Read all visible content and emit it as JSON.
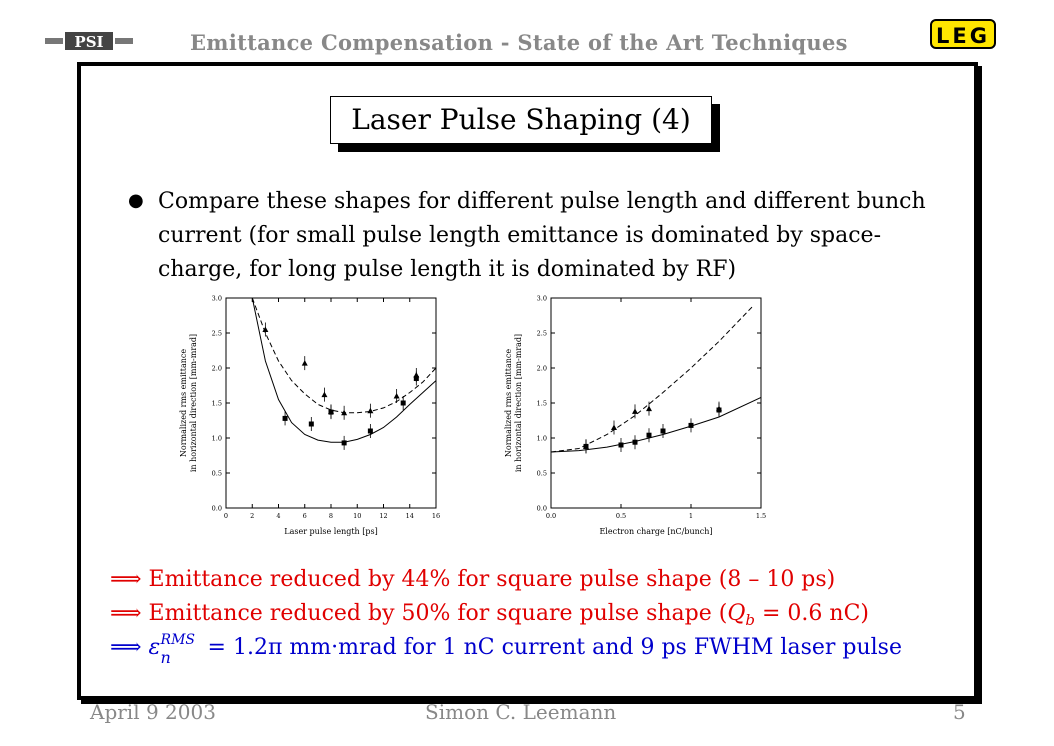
{
  "header": {
    "title": "Emittance Compensation - State of the Art Techniques",
    "logo_left": "PSI",
    "logo_right": "LEG"
  },
  "slide": {
    "title": "Laser Pulse Shaping (4)",
    "bullet": "Compare these shapes for different pulse length and different bunch current (for small pulse length emittance is dominated by space-charge, for long pulse length it is dominated by RF)",
    "line1": "Emittance reduced by 44% for square pulse shape (8 – 10 ps)",
    "line2_prefix": "Emittance reduced by 50% for square pulse shape (",
    "line2_var": "Q",
    "line2_sub": "b",
    "line2_suffix": " = 0.6 nC)",
    "line3_eps": "ε",
    "line3_sup": "RMS",
    "line3_sub": "n",
    "line3_rest": " = 1.2π mm·mrad for 1 nC current and 9 ps FWHM laser pulse",
    "arrow": "⟹"
  },
  "colors": {
    "red": "#e00000",
    "blue": "#0000cc",
    "gray": "#888888",
    "logo_yellow": "#ffe600"
  },
  "chart_data": [
    {
      "type": "scatter",
      "xlabel": "Laser pulse length [ps]",
      "ylabel_line1": "Normalized rms emittance",
      "ylabel_line2": "in horizontal direction [mm-mrad]",
      "xlim": [
        0,
        16
      ],
      "ylim": [
        0,
        3.0
      ],
      "xticks": [
        "0",
        "2",
        "4",
        "6",
        "8",
        "10",
        "12",
        "14",
        "16"
      ],
      "yticks": [
        "0.0",
        "0.5",
        "1.0",
        "1.5",
        "2.0",
        "2.5",
        "3.0"
      ],
      "series": [
        {
          "marker": "triangle",
          "points": [
            [
              3,
              2.55
            ],
            [
              6,
              2.07
            ],
            [
              7.5,
              1.62
            ],
            [
              8,
              1.38
            ],
            [
              9,
              1.36
            ],
            [
              11,
              1.39
            ],
            [
              13,
              1.6
            ],
            [
              14.5,
              1.9
            ]
          ]
        },
        {
          "marker": "square",
          "points": [
            [
              4.5,
              1.28
            ],
            [
              6.5,
              1.2
            ],
            [
              8,
              1.37
            ],
            [
              9,
              0.93
            ],
            [
              11,
              1.1
            ],
            [
              13.5,
              1.5
            ],
            [
              14.5,
              1.85
            ]
          ]
        }
      ],
      "curves": [
        {
          "style": "dashed",
          "points": [
            [
              2,
              3.0
            ],
            [
              3,
              2.5
            ],
            [
              4,
              2.1
            ],
            [
              5,
              1.82
            ],
            [
              6,
              1.63
            ],
            [
              7,
              1.48
            ],
            [
              8,
              1.4
            ],
            [
              9,
              1.36
            ],
            [
              10,
              1.36
            ],
            [
              11,
              1.38
            ],
            [
              12,
              1.43
            ],
            [
              13,
              1.52
            ],
            [
              14,
              1.65
            ],
            [
              15,
              1.8
            ],
            [
              16,
              2.0
            ]
          ]
        },
        {
          "style": "solid",
          "points": [
            [
              2,
              3.0
            ],
            [
              3,
              2.1
            ],
            [
              4,
              1.55
            ],
            [
              5,
              1.22
            ],
            [
              6,
              1.05
            ],
            [
              7,
              0.97
            ],
            [
              8,
              0.94
            ],
            [
              9,
              0.94
            ],
            [
              10,
              0.98
            ],
            [
              11,
              1.05
            ],
            [
              12,
              1.15
            ],
            [
              13,
              1.3
            ],
            [
              14,
              1.48
            ],
            [
              15,
              1.65
            ],
            [
              16,
              1.82
            ]
          ]
        }
      ]
    },
    {
      "type": "scatter",
      "xlabel": "Electron charge [nC/bunch]",
      "ylabel_line1": "Normalized rms emittance",
      "ylabel_line2": "in horizontal direction [mm-mrad]",
      "xlim": [
        0,
        1.5
      ],
      "ylim": [
        0,
        3.0
      ],
      "xticks": [
        "0.0",
        "0.5",
        "1",
        "1.5"
      ],
      "yticks": [
        "0.0",
        "0.5",
        "1.0",
        "1.5",
        "2.0",
        "2.5",
        "3.0"
      ],
      "series": [
        {
          "marker": "triangle",
          "points": [
            [
              0.25,
              0.88
            ],
            [
              0.45,
              1.15
            ],
            [
              0.6,
              1.38
            ],
            [
              0.7,
              1.42
            ],
            [
              1.2,
              1.42
            ]
          ]
        },
        {
          "marker": "square",
          "points": [
            [
              0.25,
              0.88
            ],
            [
              0.5,
              0.9
            ],
            [
              0.6,
              0.94
            ],
            [
              0.7,
              1.04
            ],
            [
              0.8,
              1.1
            ],
            [
              1.0,
              1.18
            ],
            [
              1.2,
              1.4
            ]
          ]
        }
      ],
      "curves": [
        {
          "style": "dashed",
          "points": [
            [
              0,
              0.8
            ],
            [
              0.2,
              0.85
            ],
            [
              0.4,
              1.05
            ],
            [
              0.6,
              1.32
            ],
            [
              0.8,
              1.65
            ],
            [
              1.0,
              2.0
            ],
            [
              1.2,
              2.38
            ],
            [
              1.45,
              2.9
            ]
          ]
        },
        {
          "style": "solid",
          "points": [
            [
              0,
              0.8
            ],
            [
              0.2,
              0.82
            ],
            [
              0.4,
              0.87
            ],
            [
              0.6,
              0.95
            ],
            [
              0.8,
              1.05
            ],
            [
              1.0,
              1.17
            ],
            [
              1.2,
              1.3
            ],
            [
              1.5,
              1.58
            ]
          ]
        }
      ]
    }
  ],
  "footer": {
    "date": "April 9 2003",
    "author": "Simon C. Leemann",
    "page": "5"
  }
}
